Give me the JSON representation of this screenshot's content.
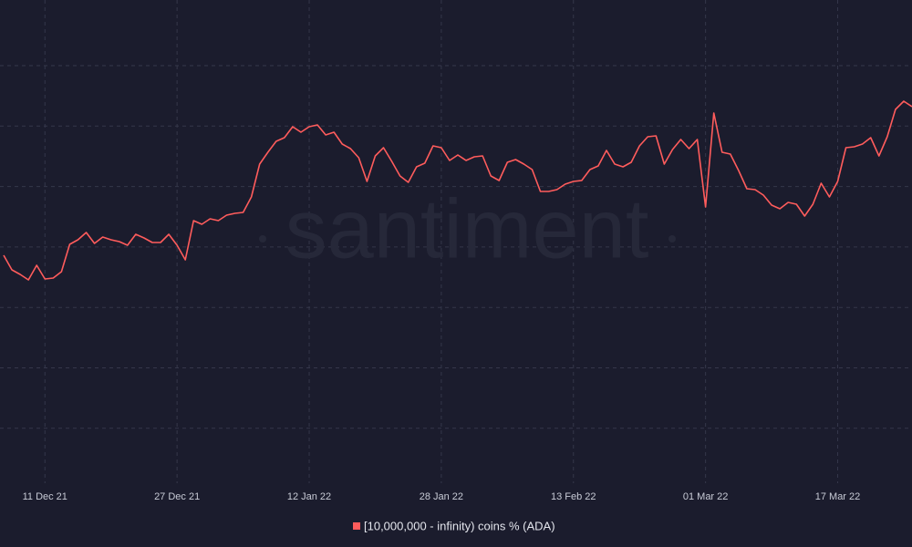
{
  "chart_data": {
    "type": "line",
    "watermark": "santiment",
    "categories": [
      null,
      null,
      null,
      null,
      null,
      "11 Dec 21",
      null,
      null,
      null,
      null,
      null,
      null,
      null,
      null,
      null,
      null,
      null,
      null,
      null,
      null,
      null,
      "27 Dec 21",
      null,
      null,
      null,
      null,
      null,
      null,
      null,
      null,
      null,
      null,
      null,
      null,
      null,
      null,
      null,
      "12 Jan 22",
      null,
      null,
      null,
      null,
      null,
      null,
      null,
      null,
      null,
      null,
      null,
      null,
      null,
      null,
      null,
      "28 Jan 22",
      null,
      null,
      null,
      null,
      null,
      null,
      null,
      null,
      null,
      null,
      null,
      null,
      null,
      null,
      null,
      "13 Feb 22",
      null,
      null,
      null,
      null,
      null,
      null,
      null,
      null,
      null,
      null,
      null,
      null,
      null,
      null,
      null,
      "01 Mar 22",
      null,
      null,
      null,
      null,
      null,
      null,
      null,
      null,
      null,
      null,
      null,
      null,
      null,
      null,
      null,
      "17 Mar 22",
      null,
      null,
      null,
      null,
      null,
      null,
      null,
      null,
      null
    ],
    "series": [
      {
        "name": "[10,000,000 - infinity) coins % (ADA)",
        "color": "#ff5c5c",
        "values": [
          220,
          204,
          199,
          193,
          209,
          194,
          195,
          202,
          232,
          237,
          245,
          233,
          240,
          237,
          235,
          231,
          243,
          239,
          234,
          234,
          243,
          231,
          215,
          258,
          254,
          260,
          258,
          264,
          266,
          267,
          284,
          320,
          333,
          345,
          349,
          361,
          355,
          361,
          363,
          352,
          355,
          342,
          337,
          327,
          301,
          329,
          338,
          323,
          307,
          300,
          317,
          321,
          340,
          338,
          324,
          330,
          324,
          328,
          329,
          307,
          302,
          322,
          325,
          320,
          314,
          290,
          290,
          292,
          298,
          301,
          302,
          314,
          318,
          335,
          320,
          317,
          322,
          340,
          350,
          351,
          320,
          336,
          347,
          337,
          347,
          273,
          376,
          333,
          331,
          313,
          293,
          292,
          286,
          275,
          271,
          278,
          276,
          263,
          276,
          299,
          284,
          301,
          338,
          339,
          342,
          349,
          329,
          350,
          380,
          389,
          383
        ]
      }
    ],
    "ylim": [
      0,
      500
    ],
    "grid": true
  }
}
